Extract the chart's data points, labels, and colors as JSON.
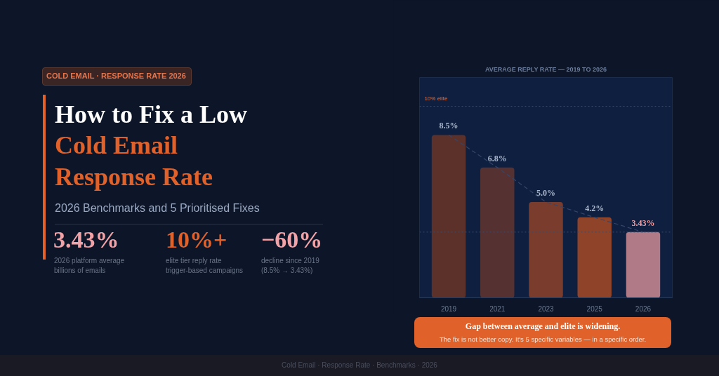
{
  "chart_data": {
    "type": "bar",
    "title": "AVERAGE REPLY RATE — 2019 TO 2026",
    "categories": [
      "2019",
      "2021",
      "2023",
      "2025",
      "2026"
    ],
    "series": [
      {
        "colors": [
          "#5c3129",
          "#553231",
          "#7a3d2d",
          "#8f442a",
          "#b07b86"
        ],
        "values": [
          8.5,
          6.8,
          5.0,
          4.2,
          3.43
        ],
        "value_labels": [
          "8.5%",
          "6.8%",
          "5.0%",
          "4.2%",
          "3.43%"
        ]
      },
      {
        "type": "line",
        "color": "#34466a",
        "line_style": "dashed",
        "values": [
          8.5,
          6.8,
          5.0,
          4.2,
          3.43
        ]
      }
    ],
    "ylim": [
      0,
      11.5
    ],
    "ref_lines": [
      {
        "axis": "y",
        "value": 10,
        "label": "10% elite",
        "color": "#3c4c6c",
        "line_style": "dotted"
      },
      {
        "axis": "y",
        "value": 3.43,
        "label": null,
        "color": "#3c4c6c",
        "line_style": "dotted"
      }
    ],
    "grid": false,
    "tick_labels": "x",
    "annotations": [
      "COLD EMAIL · RESPONSE RATE 2026",
      "How to Fix a Low",
      "Cold Email",
      "Response Rate",
      "2026 Benchmarks and 5 Prioritised Fixes",
      "3.43%",
      "2026 platform average",
      "billions of emails",
      "10%+",
      "elite tier reply rate",
      "trigger-based campaigns",
      "−60%",
      "decline since 2019",
      "(8.5% → 3.43%)",
      "Gap between average and elite is widening.",
      "The fix is not better copy. It's 5 specific variables — in a specific order.",
      "Cold Email · Response Rate · Benchmarks · 2026"
    ]
  }
}
